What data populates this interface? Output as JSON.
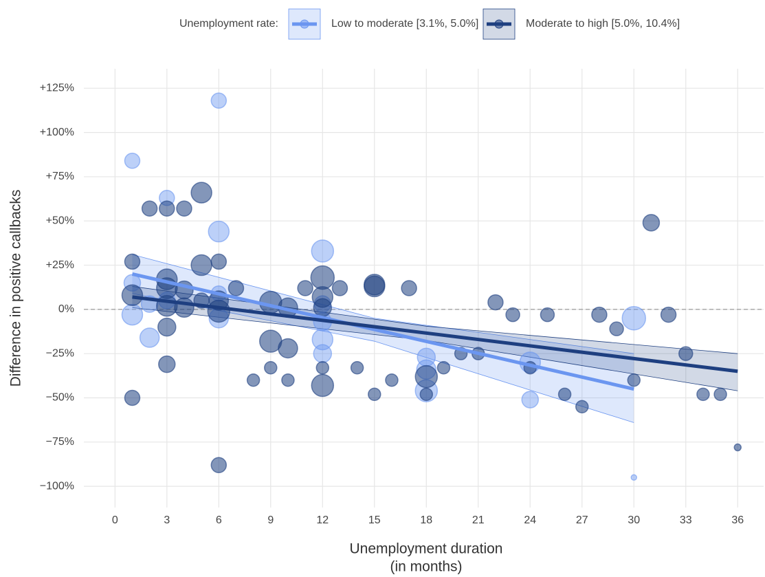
{
  "chart_data": {
    "type": "scatter",
    "legend_title": "Unemployment rate:",
    "legend_position": "top",
    "xlabel": [
      "Unemployment duration",
      "(in months)"
    ],
    "ylabel": "Difference in positive callbacks",
    "xlim": [
      -1.8,
      37.5
    ],
    "ylim": [
      -112,
      136
    ],
    "xticks": [
      0,
      3,
      6,
      9,
      12,
      15,
      18,
      21,
      24,
      27,
      30,
      33,
      36
    ],
    "yticks": [
      {
        "value": 125,
        "label": "+125%"
      },
      {
        "value": 100,
        "label": "+100%"
      },
      {
        "value": 75,
        "label": "+75%"
      },
      {
        "value": 50,
        "label": "+50%"
      },
      {
        "value": 25,
        "label": "+25%"
      },
      {
        "value": 0,
        "label": "0%"
      },
      {
        "value": -25,
        "label": "−25%"
      },
      {
        "value": -50,
        "label": "−50%"
      },
      {
        "value": -75,
        "label": "−75%"
      },
      {
        "value": -100,
        "label": "−100%"
      }
    ],
    "grid": true,
    "reference_line": 0,
    "series": [
      {
        "name": "Low to moderate [3.1%, 5.0%]",
        "color": "#6b96f0",
        "x": [
          1,
          6,
          3,
          6,
          12,
          1,
          1,
          2,
          2,
          3,
          6,
          6,
          12,
          12,
          12,
          18,
          18,
          18,
          24,
          24,
          30,
          30,
          12
        ],
        "values": [
          84,
          118,
          63,
          44,
          33,
          15,
          -3,
          -16,
          3,
          5,
          9,
          -5,
          -17,
          -25,
          -7,
          -27,
          -34,
          -46,
          -30,
          -51,
          -5,
          -95,
          3
        ],
        "sizes": [
          11,
          11,
          11,
          15,
          16,
          12,
          15,
          14,
          12,
          12,
          11,
          14,
          15,
          13,
          13,
          13,
          14,
          16,
          15,
          12,
          17,
          4,
          12
        ],
        "fit": {
          "x": [
            1,
            30
          ],
          "values": [
            20,
            -45
          ]
        },
        "band": {
          "x": [
            1,
            15,
            30
          ],
          "upper": [
            31,
            -5,
            -25
          ],
          "lower": [
            9,
            -18,
            -64
          ]
        }
      },
      {
        "name": "Moderate to high [5.0%, 10.4%]",
        "color": "#1e3f80",
        "x": [
          1,
          1,
          1,
          2,
          3,
          4,
          5,
          5,
          6,
          3,
          3,
          3,
          3,
          3,
          4,
          4,
          5,
          6,
          6,
          6,
          7,
          8,
          9,
          9,
          9,
          10,
          10,
          10,
          11,
          12,
          12,
          12,
          12,
          12,
          13,
          14,
          15,
          15,
          15,
          16,
          17,
          18,
          18,
          19,
          20,
          21,
          22,
          23,
          24,
          25,
          26,
          27,
          28,
          29,
          30,
          31,
          32,
          33,
          34,
          35,
          36
        ],
        "values": [
          27,
          8,
          -50,
          57,
          57,
          57,
          66,
          25,
          27,
          17,
          12,
          2,
          -10,
          -31,
          11,
          1,
          5,
          5,
          -1,
          -88,
          12,
          -40,
          4,
          -18,
          -33,
          1,
          -22,
          -40,
          12,
          18,
          7,
          1,
          -33,
          -43,
          12,
          -33,
          14,
          13,
          -48,
          -40,
          12,
          -38,
          -48,
          -33,
          -25,
          -25,
          4,
          -3,
          -33,
          -3,
          -48,
          -55,
          -3,
          -11,
          -40,
          49,
          -3,
          -25,
          -48,
          -48,
          -78
        ],
        "sizes": [
          11,
          15,
          11,
          11,
          11,
          11,
          15,
          15,
          11,
          15,
          15,
          15,
          13,
          12,
          13,
          14,
          11,
          14,
          16,
          11,
          11,
          9,
          16,
          16,
          9,
          14,
          14,
          9,
          11,
          17,
          15,
          13,
          9,
          16,
          11,
          9,
          15,
          15,
          9,
          9,
          11,
          16,
          9,
          9,
          9,
          9,
          11,
          10,
          9,
          10,
          9,
          9,
          11,
          10,
          9,
          12,
          11,
          10,
          9,
          9,
          5
        ],
        "fit": {
          "x": [
            1,
            36
          ],
          "values": [
            7,
            -35
          ]
        },
        "band": {
          "x": [
            1,
            18,
            36
          ],
          "upper": [
            13,
            -9.5,
            -25
          ],
          "lower": [
            1,
            -17.5,
            -46
          ]
        }
      }
    ]
  }
}
